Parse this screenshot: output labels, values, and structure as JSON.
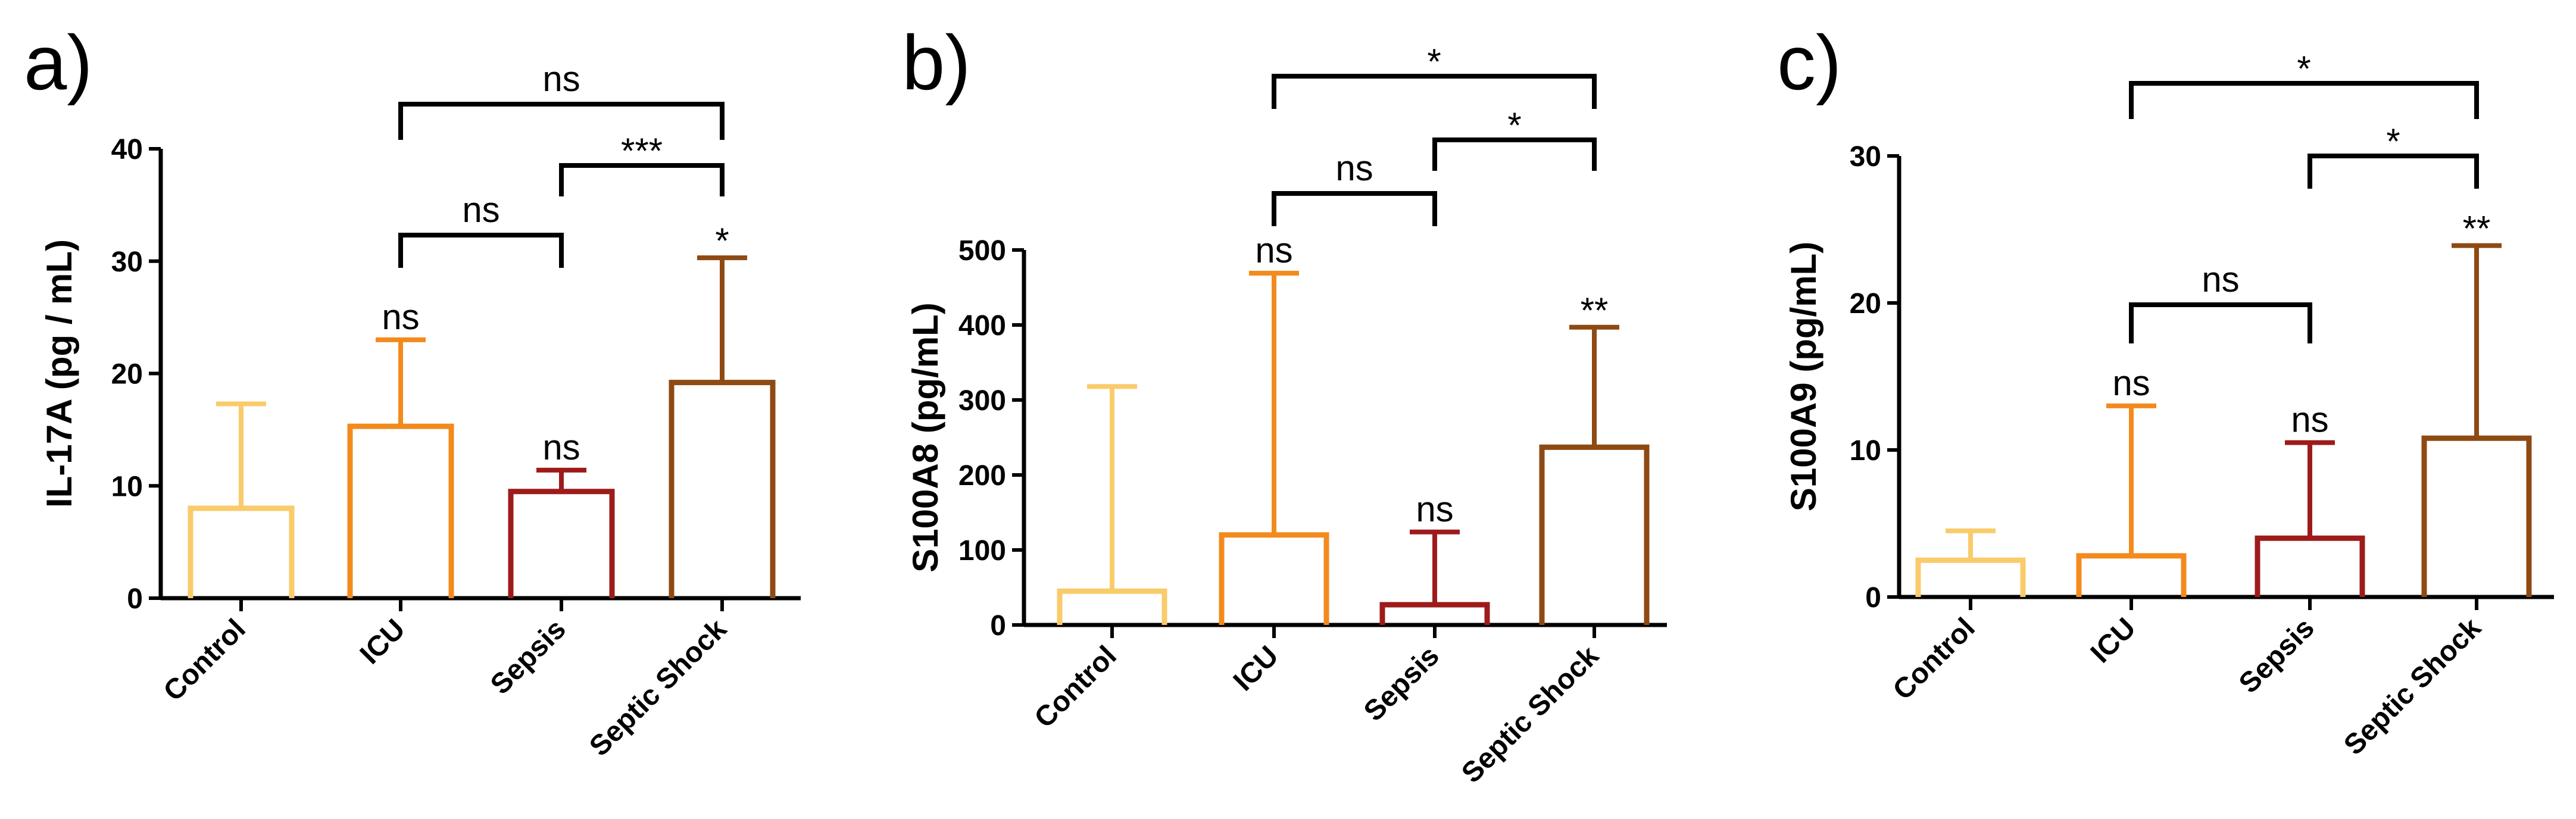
{
  "chart_data": [
    {
      "type": "bar",
      "panel_label": "a)",
      "ylabel": "IL-17A (pg / mL)",
      "ylim": [
        0,
        40
      ],
      "yticks": [
        0,
        10,
        20,
        30,
        40
      ],
      "categories": [
        "Control",
        "ICU",
        "Sepsis",
        "Septic Shock"
      ],
      "values": [
        8,
        15.3,
        9.5,
        19.2
      ],
      "error_upper": [
        17.3,
        23.0,
        11.4,
        30.3
      ],
      "bar_labels": [
        "",
        "ns",
        "ns",
        "*"
      ],
      "colors": [
        "#F9CB6A",
        "#F38A1E",
        "#9E1B1B",
        "#8E4A13"
      ],
      "comparisons": [
        {
          "from": "ICU",
          "to": "Septic Shock",
          "label": "ns"
        },
        {
          "from": "Sepsis",
          "to": "Septic Shock",
          "label": "***"
        },
        {
          "from": "ICU",
          "to": "Sepsis",
          "label": "ns"
        }
      ]
    },
    {
      "type": "bar",
      "panel_label": "b)",
      "ylabel": "S100A8 (pg/mL)",
      "ylim": [
        0,
        500
      ],
      "yticks": [
        0,
        100,
        200,
        300,
        400,
        500
      ],
      "categories": [
        "Control",
        "ICU",
        "Sepsis",
        "Septic Shock"
      ],
      "values": [
        45,
        120,
        27,
        237
      ],
      "error_upper": [
        318,
        469,
        124,
        397
      ],
      "bar_labels": [
        "",
        "ns",
        "ns",
        "**"
      ],
      "colors": [
        "#F9CB6A",
        "#F38A1E",
        "#9E1B1B",
        "#8E4A13"
      ],
      "comparisons": [
        {
          "from": "ICU",
          "to": "Septic Shock",
          "label": "*"
        },
        {
          "from": "Sepsis",
          "to": "Septic Shock",
          "label": "*"
        },
        {
          "from": "ICU",
          "to": "Sepsis",
          "label": "ns"
        }
      ]
    },
    {
      "type": "bar",
      "panel_label": "c)",
      "ylabel": "S100A9 (pg/mL)",
      "ylim": [
        0,
        30
      ],
      "yticks": [
        0,
        10,
        20,
        30
      ],
      "categories": [
        "Control",
        "ICU",
        "Sepsis",
        "Septic Shock"
      ],
      "values": [
        2.5,
        2.8,
        4.0,
        10.8
      ],
      "error_upper": [
        4.5,
        13.0,
        10.5,
        23.9
      ],
      "bar_labels": [
        "",
        "ns",
        "ns",
        "**"
      ],
      "colors": [
        "#F9CB6A",
        "#F38A1E",
        "#9E1B1B",
        "#8E4A13"
      ],
      "comparisons": [
        {
          "from": "ICU",
          "to": "Septic Shock",
          "label": "*"
        },
        {
          "from": "Sepsis",
          "to": "Septic Shock",
          "label": "*"
        },
        {
          "from": "ICU",
          "to": "Sepsis",
          "label": "ns"
        }
      ]
    }
  ]
}
